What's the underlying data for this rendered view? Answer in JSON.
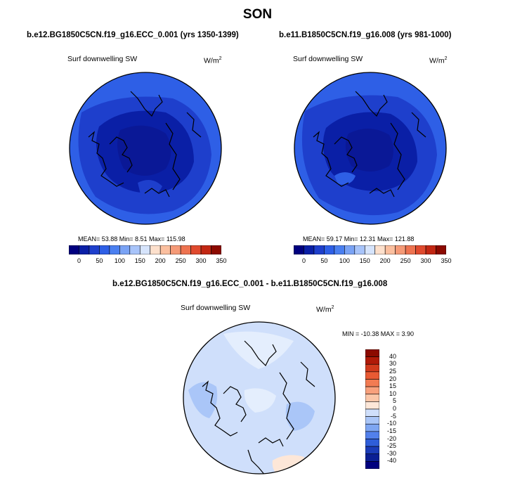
{
  "page_title": "SON",
  "panel1": {
    "case": "b.e12.BG1850C5CN.f19_g16.ECC_0.001 (yrs 1350-1399)",
    "variable": "Surf downwelling SW",
    "units_base": "W/m",
    "units_exp": "2",
    "stats": "MEAN=  53.88  Min=   8.51  Max= 115.98"
  },
  "panel2": {
    "case": "b.e11.B1850C5CN.f19_g16.008 (yrs 981-1000)",
    "variable": "Surf downwelling SW",
    "units_base": "W/m",
    "units_exp": "2",
    "stats": "MEAN=  59.17  Min=  12.31  Max= 121.88"
  },
  "diff": {
    "case": "b.e12.BG1850C5CN.f19_g16.ECC_0.001 - b.e11.B1850C5CN.f19_g16.008",
    "variable": "Surf downwelling SW",
    "units_base": "W/m",
    "units_exp": "2",
    "stats": "MIN = -10.38 MAX =   3.90"
  },
  "colorbar_abs": {
    "tick_labels": [
      "0",
      "50",
      "100",
      "150",
      "200",
      "250",
      "300",
      "350"
    ],
    "colors": [
      "#00007f",
      "#0a1fa6",
      "#1e3fcc",
      "#2e5fe6",
      "#4a7ff0",
      "#7aa3f5",
      "#a8c4fa",
      "#d6e4fc",
      "#fde0cc",
      "#fbbf9f",
      "#f59a77",
      "#ee7350",
      "#e04a2e",
      "#c22713",
      "#8c0a00"
    ]
  },
  "colorbar_diff": {
    "tick_labels": [
      "40",
      "30",
      "25",
      "20",
      "15",
      "10",
      "5",
      "0",
      "-5",
      "-10",
      "-15",
      "-20",
      "-25",
      "-30",
      "-40"
    ],
    "colors": [
      "#8c0a00",
      "#b01a08",
      "#d13a1c",
      "#e85a33",
      "#f27b52",
      "#f8a07c",
      "#fbc6a8",
      "#fde7d8",
      "#cfdffb",
      "#aac6f8",
      "#7ea6f2",
      "#5280eb",
      "#2f5ed9",
      "#1b3cb8",
      "#0b1f94",
      "#00007f"
    ]
  },
  "map_colors": {
    "ocean_high": "#2e5fe6",
    "ocean_mid": "#1e3fcc",
    "ocean_low": "#0a1fa6",
    "pole": "#0a1896",
    "diff_base": "#cfdffb",
    "diff_mid": "#aac6f8",
    "diff_light": "#e4eefd",
    "diff_pos": "#fde7d8"
  }
}
